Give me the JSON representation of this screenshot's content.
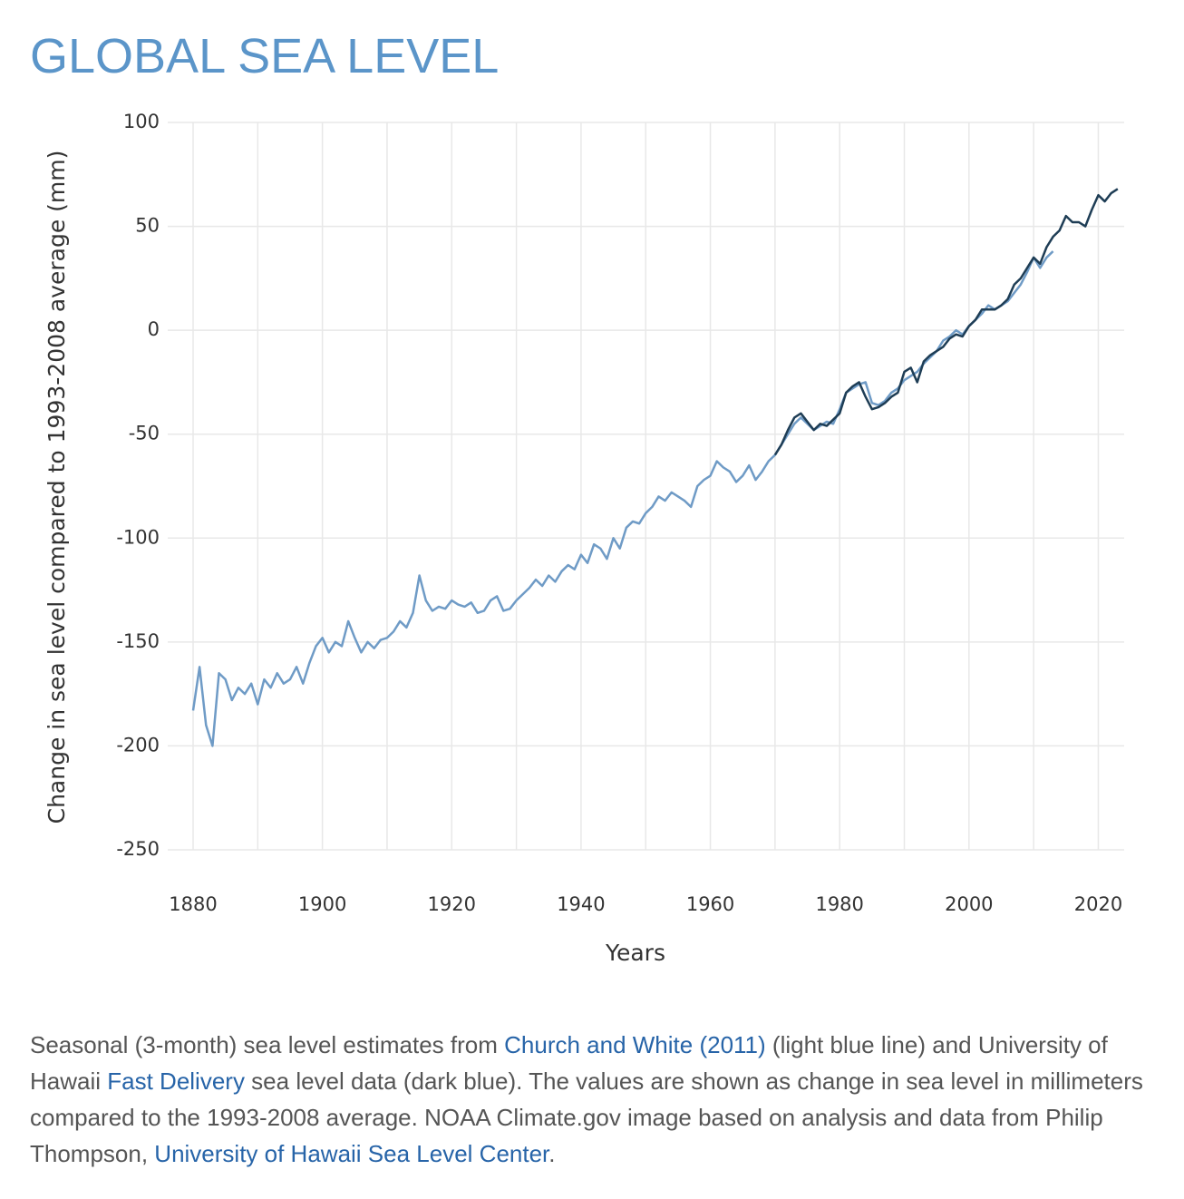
{
  "chart_data": {
    "type": "line",
    "title": "GLOBAL SEA LEVEL",
    "y_label": "Change in sea level compared to 1993-2008 average (mm)",
    "x_label": "Years",
    "x": [
      1880,
      1881,
      1882,
      1883,
      1884,
      1885,
      1886,
      1887,
      1888,
      1889,
      1890,
      1891,
      1892,
      1893,
      1894,
      1895,
      1896,
      1897,
      1898,
      1899,
      1900,
      1901,
      1902,
      1903,
      1904,
      1905,
      1906,
      1907,
      1908,
      1909,
      1910,
      1911,
      1912,
      1913,
      1914,
      1915,
      1916,
      1917,
      1918,
      1919,
      1920,
      1921,
      1922,
      1923,
      1924,
      1925,
      1926,
      1927,
      1928,
      1929,
      1930,
      1931,
      1932,
      1933,
      1934,
      1935,
      1936,
      1937,
      1938,
      1939,
      1940,
      1941,
      1942,
      1943,
      1944,
      1945,
      1946,
      1947,
      1948,
      1949,
      1950,
      1951,
      1952,
      1953,
      1954,
      1955,
      1956,
      1957,
      1958,
      1959,
      1960,
      1961,
      1962,
      1963,
      1964,
      1965,
      1966,
      1967,
      1968,
      1969,
      1970,
      1971,
      1972,
      1973,
      1974,
      1975,
      1976,
      1977,
      1978,
      1979,
      1980,
      1981,
      1982,
      1983,
      1984,
      1985,
      1986,
      1987,
      1988,
      1989,
      1990,
      1991,
      1992,
      1993,
      1994,
      1995,
      1996,
      1997,
      1998,
      1999,
      2000,
      2001,
      2002,
      2003,
      2004,
      2005,
      2006,
      2007,
      2008,
      2009,
      2010,
      2011,
      2012,
      2013,
      2014,
      2015,
      2016,
      2017,
      2018,
      2019,
      2020,
      2021,
      2022,
      2023
    ],
    "series": [
      {
        "color": "#6f9bc6",
        "values": [
          -183,
          -162,
          -190,
          -200,
          -165,
          -168,
          -178,
          -172,
          -175,
          -170,
          -180,
          -168,
          -172,
          -165,
          -170,
          -168,
          -162,
          -170,
          -160,
          -152,
          -148,
          -155,
          -150,
          -152,
          -140,
          -148,
          -155,
          -150,
          -153,
          -149,
          -148,
          -145,
          -140,
          -143,
          -136,
          -118,
          -130,
          -135,
          -133,
          -134,
          -130,
          -132,
          -133,
          -131,
          -136,
          -135,
          -130,
          -128,
          -135,
          -134,
          -130,
          -127,
          -124,
          -120,
          -123,
          -118,
          -121,
          -116,
          -113,
          -115,
          -108,
          -112,
          -103,
          -105,
          -110,
          -100,
          -105,
          -95,
          -92,
          -93,
          -88,
          -85,
          -80,
          -82,
          -78,
          -80,
          -82,
          -85,
          -75,
          -72,
          -70,
          -63,
          -66,
          -68,
          -73,
          -70,
          -65,
          -72,
          -68,
          -63,
          -60,
          -55,
          -50,
          -45,
          -42,
          -45,
          -48,
          -46,
          -44,
          -45,
          -38,
          -30,
          -28,
          -26,
          -25,
          -35,
          -36,
          -34,
          -30,
          -28,
          -24,
          -22,
          -20,
          -16,
          -13,
          -10,
          -5,
          -3,
          0,
          -2,
          2,
          5,
          8,
          12,
          10,
          12,
          14,
          18,
          22,
          28,
          35,
          30,
          35,
          38,
          null,
          null,
          null,
          null,
          null,
          null,
          null,
          null,
          null,
          null
        ]
      },
      {
        "color": "#1e3d55",
        "values": [
          null,
          null,
          null,
          null,
          null,
          null,
          null,
          null,
          null,
          null,
          null,
          null,
          null,
          null,
          null,
          null,
          null,
          null,
          null,
          null,
          null,
          null,
          null,
          null,
          null,
          null,
          null,
          null,
          null,
          null,
          null,
          null,
          null,
          null,
          null,
          null,
          null,
          null,
          null,
          null,
          null,
          null,
          null,
          null,
          null,
          null,
          null,
          null,
          null,
          null,
          null,
          null,
          null,
          null,
          null,
          null,
          null,
          null,
          null,
          null,
          null,
          null,
          null,
          null,
          null,
          null,
          null,
          null,
          null,
          null,
          null,
          null,
          null,
          null,
          null,
          null,
          null,
          null,
          null,
          null,
          null,
          null,
          null,
          null,
          null,
          null,
          null,
          null,
          null,
          null,
          -60,
          -55,
          -48,
          -42,
          -40,
          -44,
          -48,
          -45,
          -46,
          -43,
          -40,
          -30,
          -27,
          -25,
          -32,
          -38,
          -37,
          -35,
          -32,
          -30,
          -20,
          -18,
          -25,
          -15,
          -12,
          -10,
          -8,
          -4,
          -2,
          -3,
          2,
          5,
          10,
          10,
          10,
          12,
          15,
          22,
          25,
          30,
          35,
          32,
          40,
          45,
          48,
          55,
          52,
          52,
          50,
          58,
          65,
          62,
          66,
          68
        ]
      }
    ],
    "xlim": [
      1880,
      2024
    ],
    "ylim": [
      -250,
      100
    ],
    "xticks": [
      1880,
      1900,
      1920,
      1940,
      1960,
      1980,
      2000,
      2020
    ],
    "x_minor_grid": [
      1890,
      1910,
      1930,
      1950,
      1970,
      1990,
      2010
    ],
    "yticks": [
      -250,
      -200,
      -150,
      -100,
      -50,
      0,
      50,
      100
    ],
    "grid": true,
    "caption": [
      "Seasonal (3-month) sea level estimates from ",
      "Church and White (2011)",
      " (light blue line) and University of Hawaii ",
      "Fast Delivery",
      " sea level data (dark blue). The values are shown as change in sea level in millimeters compared to the 1993-2008 average. NOAA Climate.gov image based on analysis and data from Philip Thompson, ",
      "University of Hawaii Sea Level Center",
      "."
    ]
  }
}
